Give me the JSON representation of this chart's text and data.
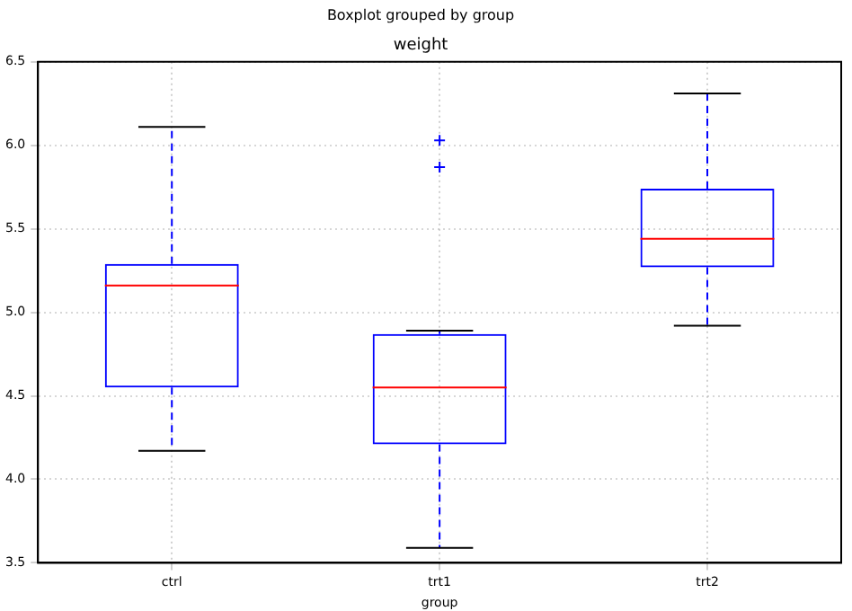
{
  "chart_data": {
    "type": "box",
    "title": "Boxplot grouped by group",
    "subtitle": "weight",
    "xlabel": "group",
    "categories": [
      "ctrl",
      "trt1",
      "trt2"
    ],
    "color": "#0000ff",
    "boxes": [
      {
        "low": 4.17,
        "q1": 4.55,
        "median": 5.16,
        "q3": 5.29,
        "high": 6.11
      },
      {
        "low": 3.59,
        "q1": 4.21,
        "median": 4.55,
        "q3": 4.87,
        "high": 4.89,
        "outliers": [
          5.87,
          6.03
        ]
      },
      {
        "low": 4.92,
        "q1": 5.27,
        "median": 5.44,
        "q3": 5.74,
        "high": 6.31
      }
    ],
    "ylim": [
      3.5,
      6.5
    ],
    "yticks": [
      {
        "value": 3.5,
        "label": "3.5"
      },
      {
        "value": 4,
        "label": "4.0"
      },
      {
        "value": 4.5,
        "label": "4.5"
      },
      {
        "value": 5,
        "label": "5.0"
      },
      {
        "value": 5.5,
        "label": "5.5"
      },
      {
        "value": 6,
        "label": "6.0"
      },
      {
        "value": 6.5,
        "label": "6.5"
      }
    ],
    "grid": true,
    "legend": false,
    "marker": "cross"
  }
}
